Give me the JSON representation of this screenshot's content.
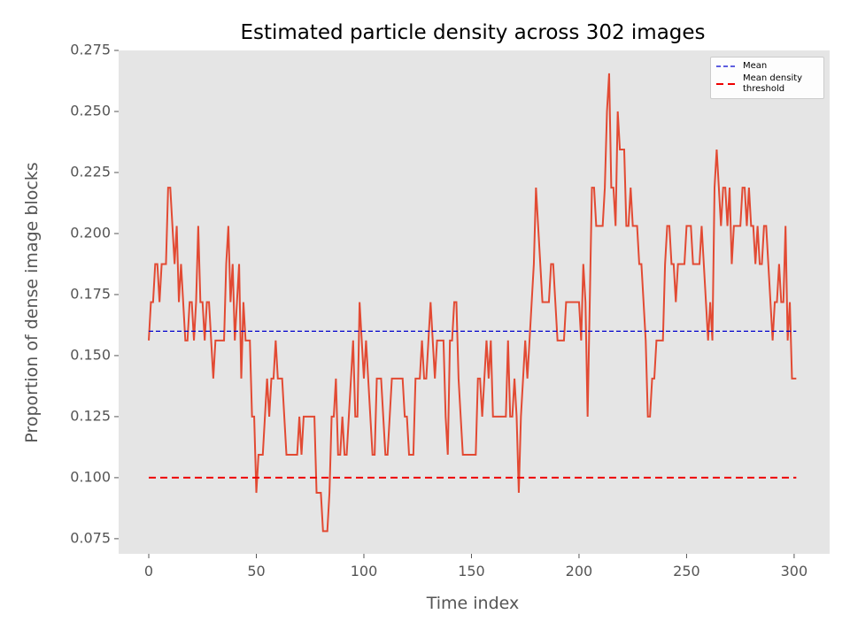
{
  "chart_data": {
    "type": "line",
    "title": "Estimated particle density across 302 images",
    "x_label": "Time index",
    "y_label": "Proportion of dense image blocks",
    "xlim": [
      -14,
      316.5
    ],
    "ylim": [
      0.0688,
      0.275
    ],
    "xticks": [
      0,
      50,
      100,
      150,
      200,
      250,
      300
    ],
    "yticks": [
      {
        "value": 0.075,
        "label": "0.075"
      },
      {
        "value": 0.1,
        "label": "0.100"
      },
      {
        "value": 0.125,
        "label": "0.125"
      },
      {
        "value": 0.15,
        "label": "0.150"
      },
      {
        "value": 0.175,
        "label": "0.175"
      },
      {
        "value": 0.2,
        "label": "0.200"
      },
      {
        "value": 0.225,
        "label": "0.225"
      },
      {
        "value": 0.25,
        "label": "0.250"
      },
      {
        "value": 0.275,
        "label": "0.275"
      }
    ],
    "grid": false,
    "legend": "upper right",
    "series": [
      {
        "color": "#E24A33",
        "values": [
          0.1562,
          0.1719,
          0.1719,
          0.1875,
          0.1875,
          0.1719,
          0.1875,
          0.1875,
          0.1875,
          0.2188,
          0.2188,
          0.2031,
          0.1875,
          0.2031,
          0.1719,
          0.1875,
          0.1719,
          0.1562,
          0.1562,
          0.1719,
          0.1719,
          0.1562,
          0.1719,
          0.2031,
          0.1719,
          0.1719,
          0.1562,
          0.1719,
          0.1719,
          0.1562,
          0.1406,
          0.1562,
          0.1562,
          0.1562,
          0.1562,
          0.1562,
          0.1875,
          0.2031,
          0.1719,
          0.1875,
          0.1562,
          0.1719,
          0.1875,
          0.1406,
          0.1719,
          0.1562,
          0.1562,
          0.1562,
          0.125,
          0.125,
          0.0938,
          0.1094,
          0.1094,
          0.1094,
          0.125,
          0.1406,
          0.125,
          0.1406,
          0.1406,
          0.1562,
          0.1406,
          0.1406,
          0.1406,
          0.125,
          0.1094,
          0.1094,
          0.1094,
          0.1094,
          0.1094,
          0.1094,
          0.125,
          0.1094,
          0.125,
          0.125,
          0.125,
          0.125,
          0.125,
          0.125,
          0.0938,
          0.0938,
          0.0938,
          0.0781,
          0.0781,
          0.0781,
          0.0938,
          0.125,
          0.125,
          0.1406,
          0.1094,
          0.1094,
          0.125,
          0.1094,
          0.1094,
          0.125,
          0.1406,
          0.1562,
          0.125,
          0.125,
          0.1719,
          0.1562,
          0.1406,
          0.1562,
          0.1406,
          0.125,
          0.1094,
          0.1094,
          0.1406,
          0.1406,
          0.1406,
          0.125,
          0.1094,
          0.1094,
          0.125,
          0.1406,
          0.1406,
          0.1406,
          0.1406,
          0.1406,
          0.1406,
          0.125,
          0.125,
          0.1094,
          0.1094,
          0.1094,
          0.1406,
          0.1406,
          0.1406,
          0.1562,
          0.1406,
          0.1406,
          0.1562,
          0.1719,
          0.1562,
          0.1406,
          0.1562,
          0.1562,
          0.1562,
          0.1562,
          0.125,
          0.1094,
          0.1562,
          0.1562,
          0.1719,
          0.1719,
          0.1406,
          0.125,
          0.1094,
          0.1094,
          0.1094,
          0.1094,
          0.1094,
          0.1094,
          0.1094,
          0.1406,
          0.1406,
          0.125,
          0.1406,
          0.1562,
          0.1406,
          0.1562,
          0.125,
          0.125,
          0.125,
          0.125,
          0.125,
          0.125,
          0.125,
          0.1562,
          0.125,
          0.125,
          0.1406,
          0.125,
          0.0938,
          0.125,
          0.1406,
          0.1562,
          0.1406,
          0.1562,
          0.1719,
          0.1875,
          0.2188,
          0.2031,
          0.1875,
          0.1719,
          0.1719,
          0.1719,
          0.1719,
          0.1875,
          0.1875,
          0.1719,
          0.1562,
          0.1562,
          0.1562,
          0.1562,
          0.1719,
          0.1719,
          0.1719,
          0.1719,
          0.1719,
          0.1719,
          0.1719,
          0.1562,
          0.1875,
          0.1719,
          0.125,
          0.1719,
          0.2188,
          0.2188,
          0.2031,
          0.2031,
          0.2031,
          0.2031,
          0.2188,
          0.25,
          0.2656,
          0.2188,
          0.2188,
          0.2031,
          0.25,
          0.2344,
          0.2344,
          0.2344,
          0.2031,
          0.2031,
          0.2188,
          0.2031,
          0.2031,
          0.2031,
          0.1875,
          0.1875,
          0.1719,
          0.1562,
          0.125,
          0.125,
          0.1406,
          0.1406,
          0.1562,
          0.1562,
          0.1562,
          0.1562,
          0.1875,
          0.2031,
          0.2031,
          0.1875,
          0.1875,
          0.1719,
          0.1875,
          0.1875,
          0.1875,
          0.1875,
          0.2031,
          0.2031,
          0.2031,
          0.1875,
          0.1875,
          0.1875,
          0.1875,
          0.2031,
          0.1875,
          0.1719,
          0.1562,
          0.1719,
          0.1562,
          0.2188,
          0.2344,
          0.2188,
          0.2031,
          0.2188,
          0.2188,
          0.2031,
          0.2188,
          0.1875,
          0.2031,
          0.2031,
          0.2031,
          0.2031,
          0.2188,
          0.2188,
          0.2031,
          0.2188,
          0.2031,
          0.2031,
          0.1875,
          0.2031,
          0.1875,
          0.1875,
          0.2031,
          0.2031,
          0.1875,
          0.1719,
          0.1562,
          0.1719,
          0.1719,
          0.1875,
          0.1719,
          0.1719,
          0.2031,
          0.1562,
          0.1719,
          0.1406,
          0.1406,
          0.1406
        ]
      },
      {
        "name": "Mean",
        "color": "#0000cd",
        "dash": "5,3",
        "width": 1.3,
        "x": [
          0,
          301
        ],
        "values": [
          0.16,
          0.16
        ]
      },
      {
        "name": "Mean density\nthreshold",
        "color": "#ee0000",
        "dash": "8,5",
        "width": 2,
        "x": [
          0,
          301
        ],
        "values": [
          0.1,
          0.1
        ]
      }
    ]
  }
}
